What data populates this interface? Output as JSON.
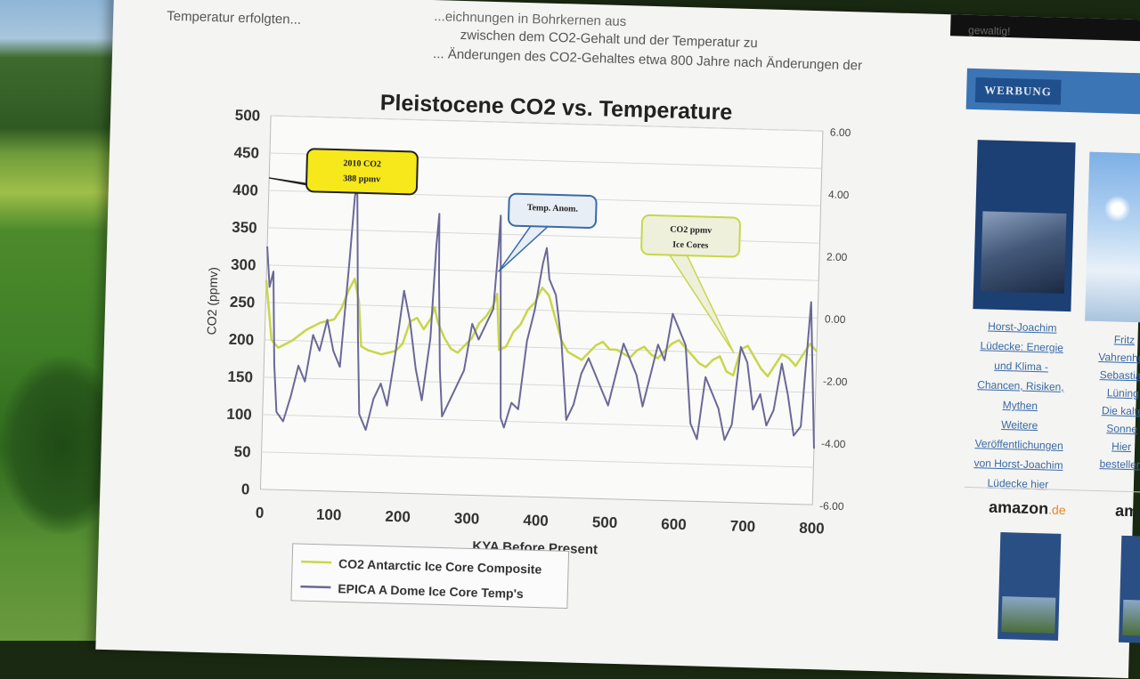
{
  "page": {
    "intro_lines": [
      "Temperatur erfolgten...",
      "zwischen dem CO2-Gehalt und der Temperatur zu",
      "... Änderungen des CO2-Gehaltes etwa 800 Jahre nach Änderungen der"
    ],
    "intro_right": "...eichnungen in Bohrkernen aus"
  },
  "sidebar": {
    "top_text": "gewaltig!",
    "ad_label": "WERBUNG",
    "book_links": [
      "Horst-Joachim",
      "Lüdecke: Energie",
      "und Klima -",
      "Chancen, Risiken,",
      "Mythen",
      "Weitere",
      "Veröffentlichungen",
      "von Horst-Joachim",
      "Lüdecke hier"
    ],
    "book_links_2": [
      "Fritz Vahrenholt",
      "Sebastian Lüning",
      "Die kalte Sonne",
      "Hier bestellen"
    ],
    "amazon_label": "amazon",
    "amazon_tld": ".de"
  },
  "chart_data": {
    "type": "line",
    "title": "Pleistocene CO2 vs. Temperature",
    "xlabel": "KYA Before Present",
    "ylabel": "CO2 (ppmv)",
    "xlim": [
      0,
      800
    ],
    "ylim": [
      0,
      500
    ],
    "y2lim": [
      -6,
      6
    ],
    "x_ticks": [
      0,
      100,
      200,
      300,
      400,
      500,
      600,
      700,
      800
    ],
    "y_ticks": [
      0,
      50,
      100,
      150,
      200,
      250,
      300,
      350,
      400,
      450,
      500
    ],
    "y2_ticks": [
      "6.00",
      "4.00",
      "2.00",
      "0.00",
      "-2.00",
      "-4.00",
      "-6.00"
    ],
    "grid": true,
    "legend_placement": "bottom-left",
    "series": [
      {
        "name": "CO2 Antarctic Ice Core Composite",
        "color": "#c8d64a",
        "axis": "left",
        "x": [
          0,
          10,
          20,
          40,
          60,
          80,
          100,
          110,
          120,
          128,
          135,
          140,
          150,
          170,
          190,
          200,
          210,
          220,
          230,
          240,
          245,
          250,
          260,
          270,
          280,
          290,
          300,
          310,
          320,
          330,
          335,
          340,
          350,
          360,
          370,
          380,
          390,
          400,
          410,
          420,
          430,
          440,
          450,
          460,
          470,
          480,
          490,
          500,
          510,
          520,
          530,
          540,
          550,
          560,
          570,
          580,
          590,
          600,
          610,
          620,
          630,
          640,
          650,
          660,
          670,
          680,
          690,
          700,
          710,
          720,
          730,
          740,
          750,
          760,
          770,
          780,
          790,
          800
        ],
        "values": [
          280,
          200,
          190,
          200,
          215,
          225,
          230,
          245,
          270,
          285,
          255,
          195,
          190,
          185,
          190,
          200,
          230,
          235,
          220,
          235,
          250,
          230,
          210,
          195,
          190,
          200,
          210,
          230,
          240,
          255,
          270,
          195,
          200,
          220,
          230,
          250,
          260,
          280,
          270,
          240,
          210,
          195,
          190,
          185,
          195,
          205,
          210,
          200,
          200,
          195,
          190,
          200,
          205,
          195,
          190,
          200,
          210,
          215,
          205,
          195,
          185,
          180,
          190,
          195,
          175,
          170,
          205,
          210,
          195,
          180,
          170,
          185,
          200,
          195,
          185,
          200,
          215,
          205
        ]
      },
      {
        "name": "EPICA A Dome Ice Core Temp's",
        "color": "#6a6898",
        "axis": "right",
        "x": [
          0,
          5,
          10,
          15,
          20,
          30,
          40,
          50,
          60,
          70,
          80,
          90,
          100,
          110,
          120,
          125,
          128,
          130,
          135,
          140,
          150,
          160,
          170,
          180,
          190,
          200,
          210,
          220,
          230,
          240,
          245,
          248,
          250,
          255,
          260,
          270,
          280,
          290,
          300,
          310,
          320,
          330,
          335,
          337,
          340,
          345,
          350,
          360,
          370,
          380,
          390,
          400,
          405,
          410,
          420,
          430,
          440,
          450,
          460,
          470,
          480,
          490,
          500,
          510,
          520,
          530,
          540,
          550,
          560,
          570,
          580,
          590,
          600,
          610,
          620,
          630,
          640,
          650,
          660,
          670,
          680,
          690,
          700,
          710,
          720,
          730,
          740,
          750,
          760,
          770,
          780,
          790,
          800
        ],
        "values": [
          1.8,
          0.5,
          1.0,
          -2.0,
          -3.5,
          -3.8,
          -3.0,
          -2.0,
          -2.5,
          -1.0,
          -1.5,
          -0.5,
          -1.5,
          -2.0,
          1.5,
          3.5,
          3.8,
          2.5,
          -1.0,
          -3.5,
          -4.0,
          -3.0,
          -2.5,
          -3.2,
          -1.5,
          0.5,
          -0.5,
          -2.0,
          -3.0,
          -1.0,
          2.0,
          3.0,
          1.0,
          -2.0,
          -3.5,
          -3.0,
          -2.5,
          -2.0,
          -0.5,
          -1.0,
          -0.5,
          0.0,
          2.0,
          3.0,
          0.5,
          -3.5,
          -3.8,
          -3.0,
          -3.2,
          -1.0,
          0.0,
          1.5,
          2.0,
          1.0,
          0.5,
          -1.0,
          -3.5,
          -3.0,
          -2.0,
          -1.5,
          -2.0,
          -2.5,
          -3.0,
          -2.0,
          -1.0,
          -1.5,
          -2.0,
          -3.0,
          -2.0,
          -1.0,
          -1.5,
          0.0,
          -0.5,
          -1.0,
          -3.5,
          -4.0,
          -2.0,
          -2.5,
          -3.0,
          -4.0,
          -3.5,
          -1.0,
          -1.5,
          -3.0,
          -2.5,
          -3.5,
          -3.0,
          -1.5,
          -2.5,
          -3.8,
          -3.5,
          0.5,
          -4.2
        ]
      }
    ],
    "annotations": [
      {
        "text_lines": [
          "2010 CO2",
          "388 ppmv"
        ],
        "style": "yellow"
      },
      {
        "text_lines": [
          "Temp. Anom."
        ],
        "style": "blue"
      },
      {
        "text_lines": [
          "CO2 ppmv",
          "Ice Cores"
        ],
        "style": "green"
      }
    ]
  }
}
